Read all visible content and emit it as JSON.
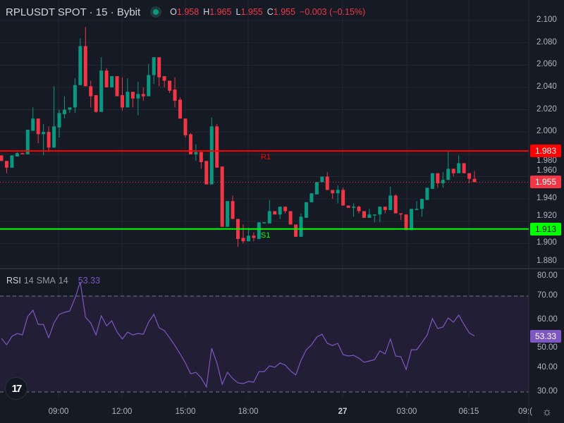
{
  "header": {
    "title": "RPLUSDT SPOT · 15 · Bybit",
    "status": "market-open",
    "open_label": "O",
    "open": "1.958",
    "high_label": "H",
    "high": "1.965",
    "low_label": "L",
    "low": "1.955",
    "close_label": "C",
    "close": "1.955",
    "change": "−0.003 (−0.15%)"
  },
  "colors": {
    "background": "#161a25",
    "up": "#089981",
    "down": "#f23645",
    "resistance": "#ff0000",
    "support": "#00ff00",
    "rsi": "#7e57c2"
  },
  "price_axis": {
    "ticks": [
      "2.100",
      "2.080",
      "2.060",
      "2.040",
      "2.020",
      "2.000",
      "1.980",
      "1.960",
      "1.940",
      "1.920",
      "1.900",
      "1.880"
    ]
  },
  "levels": {
    "r1": {
      "label": "R1",
      "price": 1.983,
      "price_text": "1.983"
    },
    "s1": {
      "label": "S1",
      "price": 1.913,
      "price_text": "1.913"
    },
    "last": {
      "price": 1.955,
      "price_text": "1.955"
    }
  },
  "candles": [
    [
      1.979,
      1.979,
      1.974,
      1.974
    ],
    [
      1.974,
      1.974,
      1.963,
      1.968
    ],
    [
      1.968,
      1.979,
      1.968,
      1.979
    ],
    [
      1.978,
      1.982,
      1.978,
      1.981
    ],
    [
      1.981,
      1.981,
      1.98,
      1.98
    ],
    [
      1.98,
      2.002,
      1.98,
      2.002
    ],
    [
      2.001,
      2.022,
      2.001,
      2.012
    ],
    [
      2.012,
      2.012,
      1.99,
      1.998
    ],
    [
      1.998,
      2.007,
      1.979,
      2.0
    ],
    [
      2.0,
      2.005,
      1.982,
      1.986
    ],
    [
      1.986,
      2.041,
      1.986,
      2.005
    ],
    [
      2.004,
      2.02,
      1.995,
      2.017
    ],
    [
      2.016,
      2.032,
      2.012,
      2.02
    ],
    [
      2.02,
      2.022,
      2.017,
      2.022
    ],
    [
      2.022,
      2.048,
      2.017,
      2.042
    ],
    [
      2.042,
      2.084,
      2.042,
      2.077
    ],
    [
      2.077,
      2.094,
      2.041,
      2.041
    ],
    [
      2.041,
      2.046,
      2.022,
      2.032
    ],
    [
      2.033,
      2.033,
      2.017,
      2.018
    ],
    [
      2.018,
      2.067,
      2.018,
      2.055
    ],
    [
      2.055,
      2.057,
      2.04,
      2.04
    ],
    [
      2.04,
      2.05,
      2.04,
      2.05
    ],
    [
      2.05,
      2.05,
      2.032,
      2.032
    ],
    [
      2.033,
      2.049,
      2.019,
      2.022
    ],
    [
      2.022,
      2.048,
      2.022,
      2.036
    ],
    [
      2.036,
      2.036,
      2.022,
      2.03
    ],
    [
      2.03,
      2.045,
      2.015,
      2.034
    ],
    [
      2.034,
      2.04,
      2.028,
      2.032
    ],
    [
      2.032,
      2.061,
      2.032,
      2.051
    ],
    [
      2.051,
      2.067,
      2.043,
      2.067
    ],
    [
      2.067,
      2.067,
      2.041,
      2.049
    ],
    [
      2.05,
      2.05,
      2.04,
      2.046
    ],
    [
      2.046,
      2.046,
      2.035,
      2.037
    ],
    [
      2.038,
      2.049,
      2.022,
      2.028
    ],
    [
      2.029,
      2.031,
      2.012,
      2.012
    ],
    [
      2.012,
      2.012,
      1.995,
      1.997
    ],
    [
      1.998,
      1.999,
      1.98,
      1.98
    ],
    [
      1.98,
      1.989,
      1.974,
      1.982
    ],
    [
      1.982,
      1.982,
      1.967,
      1.973
    ],
    [
      1.974,
      1.974,
      1.953,
      1.953
    ],
    [
      1.953,
      2.013,
      1.953,
      2.005
    ],
    [
      2.005,
      2.007,
      1.968,
      1.968
    ],
    [
      1.969,
      1.969,
      1.915,
      1.915
    ],
    [
      1.915,
      1.938,
      1.915,
      1.938
    ],
    [
      1.938,
      1.943,
      1.922,
      1.922
    ],
    [
      1.922,
      1.922,
      1.897,
      1.904
    ],
    [
      1.905,
      1.917,
      1.9,
      1.902
    ],
    [
      1.902,
      1.914,
      1.902,
      1.907
    ],
    [
      1.907,
      1.91,
      1.902,
      1.905
    ],
    [
      1.904,
      1.919,
      1.904,
      1.919
    ],
    [
      1.918,
      1.919,
      1.918,
      1.919
    ],
    [
      1.918,
      1.939,
      1.918,
      1.929
    ],
    [
      1.929,
      1.929,
      1.926,
      1.926
    ],
    [
      1.926,
      1.933,
      1.922,
      1.933
    ],
    [
      1.933,
      1.933,
      1.927,
      1.929
    ],
    [
      1.929,
      1.929,
      1.917,
      1.917
    ],
    [
      1.917,
      1.917,
      1.906,
      1.906
    ],
    [
      1.906,
      1.927,
      1.906,
      1.924
    ],
    [
      1.923,
      1.937,
      1.923,
      1.937
    ],
    [
      1.937,
      1.945,
      1.937,
      1.945
    ],
    [
      1.944,
      1.955,
      1.944,
      1.955
    ],
    [
      1.955,
      1.96,
      1.955,
      1.96
    ],
    [
      1.96,
      1.964,
      1.948,
      1.948
    ],
    [
      1.948,
      1.948,
      1.94,
      1.945
    ],
    [
      1.945,
      1.952,
      1.936,
      1.948
    ],
    [
      1.948,
      1.95,
      1.934,
      1.934
    ],
    [
      1.934,
      1.934,
      1.932,
      1.932
    ],
    [
      1.932,
      1.936,
      1.924,
      1.933
    ],
    [
      1.933,
      1.934,
      1.927,
      1.929
    ],
    [
      1.929,
      1.929,
      1.923,
      1.923
    ],
    [
      1.923,
      1.931,
      1.923,
      1.926
    ],
    [
      1.926,
      1.926,
      1.919,
      1.926
    ],
    [
      1.926,
      1.933,
      1.919,
      1.933
    ],
    [
      1.933,
      1.933,
      1.927,
      1.93
    ],
    [
      1.93,
      1.951,
      1.93,
      1.943
    ],
    [
      1.943,
      1.944,
      1.927,
      1.927
    ],
    [
      1.927,
      1.927,
      1.921,
      1.926
    ],
    [
      1.926,
      1.926,
      1.912,
      1.912
    ],
    [
      1.912,
      1.931,
      1.912,
      1.931
    ],
    [
      1.93,
      1.938,
      1.93,
      1.931
    ],
    [
      1.931,
      1.94,
      1.924,
      1.94
    ],
    [
      1.939,
      1.95,
      1.939,
      1.95
    ],
    [
      1.949,
      1.963,
      1.949,
      1.963
    ],
    [
      1.963,
      1.963,
      1.95,
      1.954
    ],
    [
      1.954,
      1.964,
      1.95,
      1.957
    ],
    [
      1.957,
      1.983,
      1.957,
      1.967
    ],
    [
      1.967,
      1.967,
      1.96,
      1.963
    ],
    [
      1.963,
      1.979,
      1.963,
      1.972
    ],
    [
      1.972,
      1.972,
      1.963,
      1.963
    ],
    [
      1.963,
      1.963,
      1.954,
      1.958
    ],
    [
      1.958,
      1.965,
      1.955,
      1.955
    ]
  ],
  "rsi": {
    "name": "RSI",
    "length": "14",
    "ma_type": "SMA",
    "ma_length": "14",
    "value": "53.33",
    "upper_band": 70,
    "lower_band": 30,
    "axis_ticks": [
      "80.00",
      "70.00",
      "60.00",
      "50.00",
      "40.00",
      "30.00"
    ],
    "values": [
      52.4,
      49.7,
      53.2,
      54.4,
      53.8,
      61.5,
      64.1,
      58.2,
      58.2,
      52.6,
      58.8,
      62.4,
      63.2,
      63.8,
      69.1,
      75.9,
      61.2,
      58.8,
      53.8,
      61.8,
      57.6,
      59.7,
      55.0,
      52.1,
      55.0,
      53.8,
      54.4,
      54.1,
      59.1,
      62.4,
      56.8,
      55.6,
      52.6,
      49.4,
      45.9,
      42.1,
      37.6,
      38.2,
      35.9,
      32.1,
      48.2,
      42.1,
      33.2,
      38.2,
      35.6,
      33.8,
      33.5,
      34.4,
      34.1,
      38.5,
      38.5,
      40.9,
      40.3,
      42.1,
      41.2,
      38.8,
      37.1,
      43.2,
      47.6,
      49.7,
      52.9,
      54.1,
      50.3,
      49.4,
      50.3,
      45.6,
      45.0,
      45.3,
      44.1,
      42.4,
      42.9,
      43.5,
      47.1,
      45.9,
      52.1,
      45.0,
      44.7,
      39.4,
      47.6,
      47.6,
      50.6,
      53.8,
      60.6,
      56.5,
      57.1,
      60.9,
      59.1,
      62.1,
      58.2,
      54.7,
      53.33
    ]
  },
  "time_axis": {
    "labels": [
      "09:00",
      "12:00",
      "15:00",
      "18:00",
      "27",
      "03:00",
      "06:15",
      "09:("
    ]
  },
  "logo": "TV"
}
